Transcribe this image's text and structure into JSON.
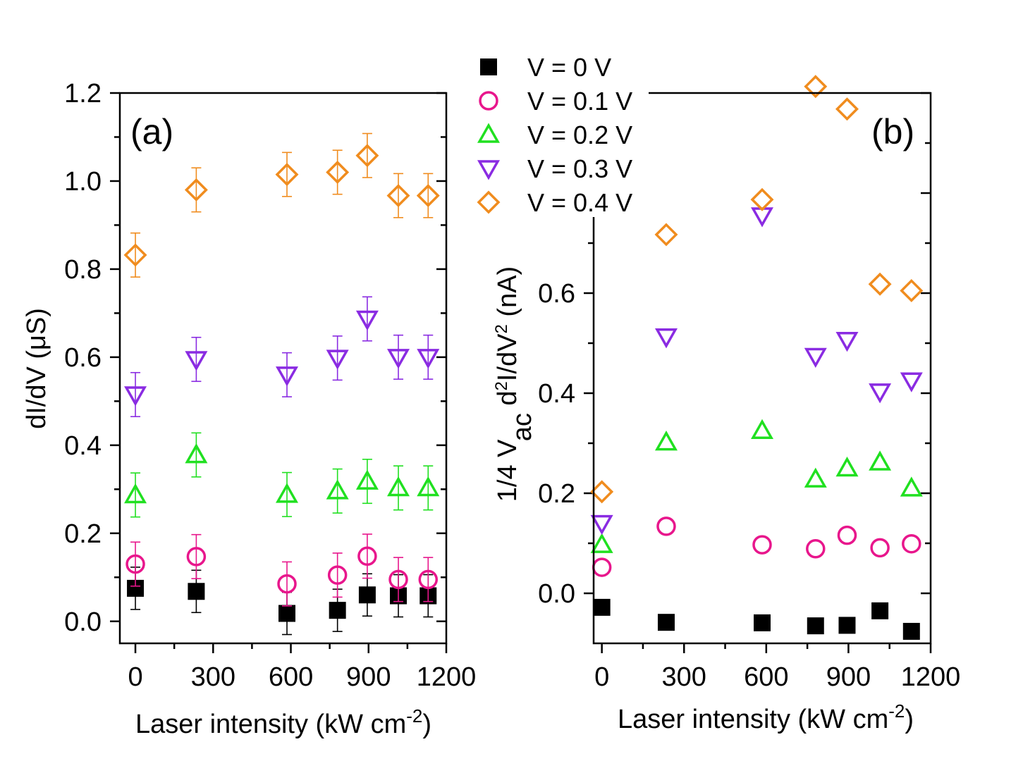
{
  "legend": {
    "entries": [
      {
        "label": "V = 0 V",
        "marker": "filled-square",
        "color": "#000000"
      },
      {
        "label": "V = 0.1 V",
        "marker": "open-circle",
        "color": "#e8168c"
      },
      {
        "label": "V = 0.2 V",
        "marker": "open-triangle-up",
        "color": "#20e020"
      },
      {
        "label": "V = 0.3 V",
        "marker": "open-triangle-down",
        "color": "#8a2be2"
      },
      {
        "label": "V = 0.4 V",
        "marker": "open-diamond",
        "color": "#f08c1e"
      }
    ]
  },
  "chart_data": [
    {
      "type": "scatter",
      "panel_label": "(a)",
      "xlabel": "Laser intensity (kW cm",
      "xlabel_sup": "-2",
      "xlabel_end": ")",
      "ylabel": "dI/dV (μS)",
      "xlim": [
        -60,
        1200
      ],
      "ylim": [
        -0.05,
        1.2
      ],
      "xticks": [
        0,
        300,
        600,
        900,
        1200
      ],
      "xtick_labels": [
        "0",
        "300",
        "600",
        "900",
        "1200"
      ],
      "yticks": [
        0.0,
        0.2,
        0.4,
        0.6,
        0.8,
        1.0,
        1.2
      ],
      "ytick_labels": [
        "0.0",
        "0.2",
        "0.4",
        "0.6",
        "0.8",
        "1.0",
        "1.2"
      ],
      "x": [
        0,
        235,
        585,
        780,
        895,
        1015,
        1130
      ],
      "series": [
        {
          "name": "V = 0 V",
          "values": [
            0.075,
            0.068,
            0.018,
            0.025,
            0.06,
            0.058,
            0.058
          ],
          "errors": [
            0.048,
            0.048,
            0.048,
            0.048,
            0.048,
            0.048,
            0.048
          ]
        },
        {
          "name": "V = 0.1 V",
          "values": [
            0.13,
            0.147,
            0.085,
            0.105,
            0.148,
            0.095,
            0.095
          ],
          "errors": [
            0.05,
            0.05,
            0.05,
            0.05,
            0.05,
            0.05,
            0.05
          ]
        },
        {
          "name": "V = 0.2 V",
          "values": [
            0.287,
            0.378,
            0.288,
            0.296,
            0.318,
            0.303,
            0.303
          ],
          "errors": [
            0.05,
            0.05,
            0.05,
            0.05,
            0.05,
            0.05,
            0.05
          ]
        },
        {
          "name": "V = 0.3 V",
          "values": [
            0.515,
            0.595,
            0.56,
            0.598,
            0.687,
            0.6,
            0.6
          ],
          "errors": [
            0.05,
            0.05,
            0.05,
            0.05,
            0.05,
            0.05,
            0.05
          ]
        },
        {
          "name": "V = 0.4 V",
          "values": [
            0.832,
            0.98,
            1.015,
            1.02,
            1.058,
            0.967,
            0.967
          ],
          "errors": [
            0.05,
            0.05,
            0.05,
            0.05,
            0.05,
            0.05,
            0.05
          ]
        }
      ]
    },
    {
      "type": "scatter",
      "panel_label": "(b)",
      "xlabel": "Laser intensity (kW cm",
      "xlabel_sup": "-2",
      "xlabel_end": ")",
      "ylabel_parts": {
        "a": "1/4 V",
        "sub": "ac",
        "b": " d",
        "sup1": "2",
        "c": "I/dV",
        "sup2": "2",
        "d": " (nA)"
      },
      "xlim": [
        -30,
        1200
      ],
      "ylim": [
        -0.1,
        1.0
      ],
      "xticks": [
        0,
        300,
        600,
        900,
        1200
      ],
      "xtick_labels": [
        "0",
        "300",
        "600",
        "900",
        "1200"
      ],
      "yticks": [
        0.0,
        0.2,
        0.4,
        0.6
      ],
      "ytick_labels": [
        "0.0",
        "0.2",
        "0.4",
        "0.6"
      ],
      "x": [
        0,
        235,
        585,
        780,
        895,
        1015,
        1130
      ],
      "series": [
        {
          "name": "V = 0 V",
          "values": [
            -0.028,
            -0.058,
            -0.059,
            -0.065,
            -0.064,
            -0.035,
            -0.076
          ]
        },
        {
          "name": "V = 0.1 V",
          "values": [
            0.052,
            0.134,
            0.097,
            0.089,
            0.116,
            0.091,
            0.099
          ]
        },
        {
          "name": "V = 0.2 V",
          "values": [
            0.097,
            0.302,
            0.325,
            0.228,
            0.25,
            0.262,
            0.21
          ]
        },
        {
          "name": "V = 0.3 V",
          "values": [
            0.14,
            0.513,
            0.755,
            0.474,
            0.506,
            0.403,
            0.425
          ]
        },
        {
          "name": "V = 0.4 V",
          "values": [
            0.203,
            0.717,
            0.787,
            1.013,
            0.968,
            0.618,
            0.605
          ]
        }
      ]
    }
  ]
}
